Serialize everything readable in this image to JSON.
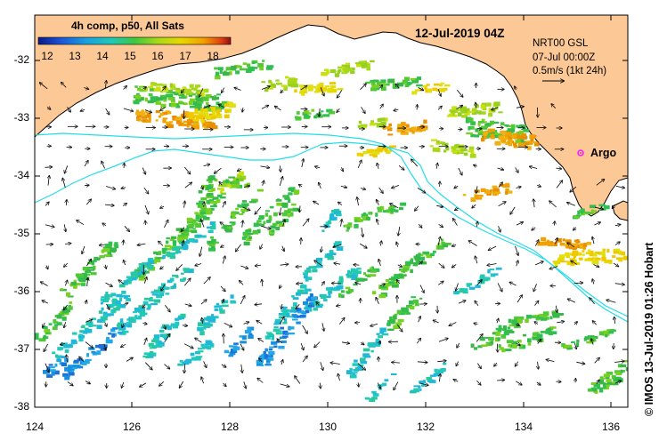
{
  "colorbar": {
    "title": "4h comp, p50, All Sats",
    "ticks": [
      "12",
      "13",
      "14",
      "15",
      "16",
      "17",
      "18"
    ],
    "colors": [
      "#0a1a8a",
      "#1c56d8",
      "#18a0e0",
      "#20c8b8",
      "#3cc840",
      "#a8d818",
      "#e8d800",
      "#f0a000",
      "#e04010",
      "#901010"
    ]
  },
  "timestamp": "12-Jul-2019 04Z",
  "current_legend": {
    "line1": "NRT00 GSL",
    "line2": "07-Jul 00:00Z",
    "line3": "0.5m/s (1kt 24h)"
  },
  "argo": {
    "label": "Argo",
    "color": "#ee22ee"
  },
  "credit": "© IMOS 13-Jul-2019 01:26 Hobart",
  "axes": {
    "x_ticks": [
      "124",
      "126",
      "128",
      "130",
      "132",
      "134",
      "136"
    ],
    "y_ticks": [
      "-32",
      "-33",
      "-34",
      "-35",
      "-36",
      "-37",
      "-38"
    ]
  },
  "colors": {
    "land": "#fcc896",
    "ocean": "#ffffff",
    "isobath": "#22dde8"
  }
}
